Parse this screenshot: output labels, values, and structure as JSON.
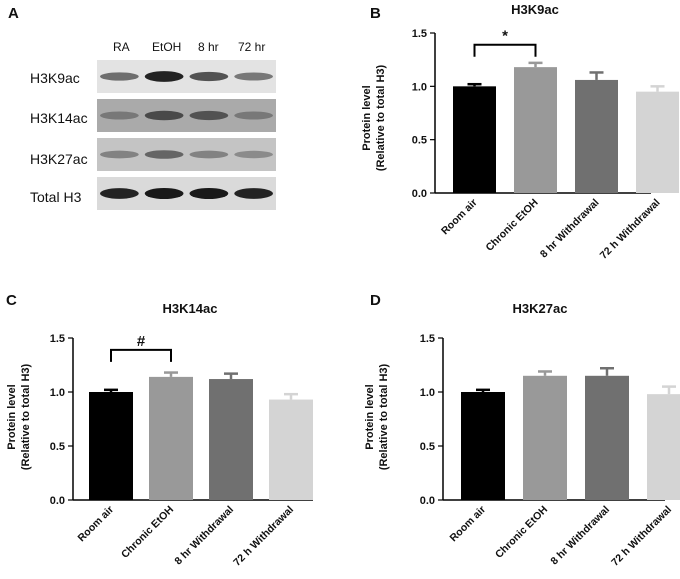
{
  "panels": {
    "A": "A",
    "B": "B",
    "C": "C",
    "D": "D"
  },
  "blot": {
    "lanes": [
      "RA",
      "EtOH",
      "8 hr",
      "72 hr"
    ],
    "rows": [
      {
        "label": "H3K9ac",
        "background": "#e3e3e3",
        "band_intensity": [
          0.55,
          0.95,
          0.7,
          0.5
        ]
      },
      {
        "label": "H3K14ac",
        "background": "#aaaaaa",
        "band_intensity": [
          0.5,
          0.75,
          0.7,
          0.5
        ]
      },
      {
        "label": "H3K27ac",
        "background": "#c4c4c4",
        "band_intensity": [
          0.45,
          0.6,
          0.45,
          0.4
        ]
      },
      {
        "label": "Total H3",
        "background": "#dadada",
        "band_intensity": [
          0.95,
          1.0,
          1.0,
          0.95
        ]
      }
    ]
  },
  "chart_data": [
    {
      "panel": "B",
      "type": "bar",
      "title": "H3K9ac",
      "ylabel_line1": "Protein level",
      "ylabel_line2": "(Relative to total  H3)",
      "categories": [
        "Room air",
        "Chronic EtOH",
        "8 hr Withdrawal",
        "72 h Withdrawal"
      ],
      "values": [
        1.0,
        1.18,
        1.06,
        0.95
      ],
      "errors": [
        0.02,
        0.04,
        0.07,
        0.05
      ],
      "colors": [
        "#000000",
        "#999999",
        "#707070",
        "#d4d4d4"
      ],
      "ylim": [
        0,
        1.5
      ],
      "yticks": [
        "0.0",
        "0.5",
        "1.0",
        "1.5"
      ],
      "significance": {
        "from": 0,
        "to": 1,
        "level": 1.39,
        "symbol": "*"
      }
    },
    {
      "panel": "C",
      "type": "bar",
      "title": "H3K14ac",
      "ylabel_line1": "Protein level",
      "ylabel_line2": "(Relative to total  H3)",
      "categories": [
        "Room air",
        "Chronic EtOH",
        "8 hr Withdrawal",
        "72 h Withdrawal"
      ],
      "values": [
        1.0,
        1.14,
        1.12,
        0.93
      ],
      "errors": [
        0.02,
        0.04,
        0.05,
        0.05
      ],
      "colors": [
        "#000000",
        "#999999",
        "#707070",
        "#d4d4d4"
      ],
      "ylim": [
        0,
        1.5
      ],
      "yticks": [
        "0.0",
        "0.5",
        "1.0",
        "1.5"
      ],
      "significance": {
        "from": 0,
        "to": 1,
        "level": 1.39,
        "symbol": "#"
      }
    },
    {
      "panel": "D",
      "type": "bar",
      "title": "H3K27ac",
      "ylabel_line1": "Protein level",
      "ylabel_line2": "(Relative to total  H3)",
      "categories": [
        "Room air",
        "Chronic EtOH",
        "8 hr Withdrawal",
        "72 h Withdrawal"
      ],
      "values": [
        1.0,
        1.15,
        1.15,
        0.98
      ],
      "errors": [
        0.02,
        0.04,
        0.07,
        0.07
      ],
      "colors": [
        "#000000",
        "#999999",
        "#707070",
        "#d4d4d4"
      ],
      "ylim": [
        0,
        1.5
      ],
      "yticks": [
        "0.0",
        "0.5",
        "1.0",
        "1.5"
      ],
      "significance": null
    }
  ]
}
